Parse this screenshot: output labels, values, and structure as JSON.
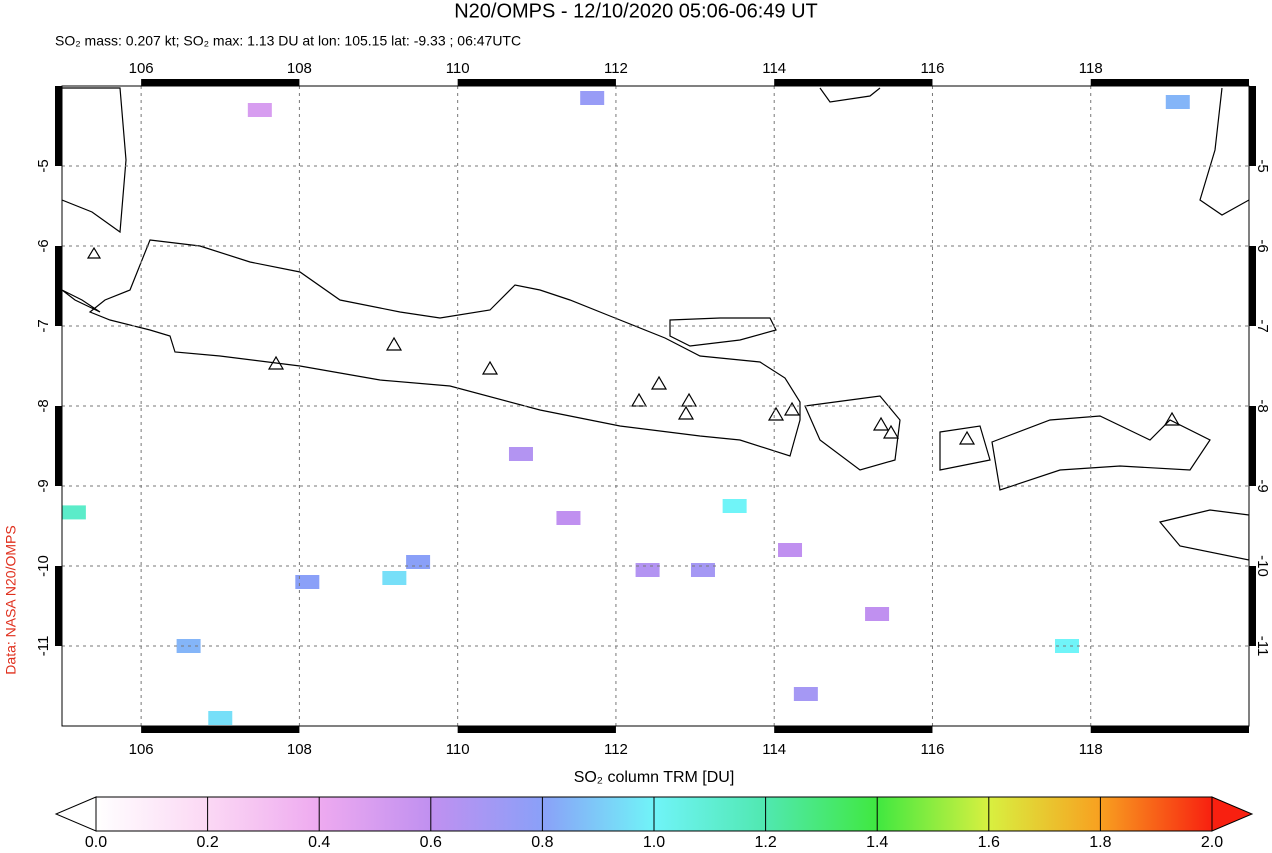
{
  "chart_data": {
    "type": "map",
    "title": "N20/OMPS - 12/10/2020 05:06-06:49 UT",
    "subtitle": "SO₂ mass: 0.207 kt; SO₂ max: 1.13 DU at lon: 105.15 lat: -9.33 ; 06:47UTC",
    "credit": "Data: NASA N20/OMPS",
    "xlim": [
      105,
      120
    ],
    "ylim": [
      -12,
      -4
    ],
    "xticks": [
      106,
      108,
      110,
      112,
      114,
      116,
      118
    ],
    "yticks": [
      -5,
      -6,
      -7,
      -8,
      -9,
      -10,
      -11
    ],
    "grid": true,
    "pixels": {
      "lon": [
        105.15,
        111.7,
        113.5,
        109.2,
        107.0,
        117.7,
        112.4,
        114.4,
        119.1,
        110.8,
        109.5,
        113.1,
        108.1,
        106.6,
        115.3,
        114.2,
        111.4,
        107.5
      ],
      "lat": [
        -9.33,
        -4.15,
        -9.25,
        -10.15,
        -11.9,
        -11.0,
        -10.05,
        -11.6,
        -4.2,
        -8.6,
        -9.95,
        -10.05,
        -10.2,
        -11.0,
        -10.6,
        -9.8,
        -9.4,
        -4.3
      ],
      "values": [
        1.13,
        0.75,
        1.0,
        0.95,
        0.95,
        1.0,
        0.65,
        0.7,
        0.85,
        0.65,
        0.8,
        0.7,
        0.8,
        0.85,
        0.6,
        0.6,
        0.6,
        0.5
      ]
    },
    "colorbar": {
      "label": "SO₂ column TRM [DU]",
      "lim": [
        0,
        2
      ],
      "ticks": [
        {
          "value": 0,
          "label": "0.0"
        },
        {
          "value": 0.2,
          "label": "0.2"
        },
        {
          "value": 0.4,
          "label": "0.4"
        },
        {
          "value": 0.6,
          "label": "0.6"
        },
        {
          "value": 0.8,
          "label": "0.8"
        },
        {
          "value": 1.0,
          "label": "1.0"
        },
        {
          "value": 1.2,
          "label": "1.2"
        },
        {
          "value": 1.4,
          "label": "1.4"
        },
        {
          "value": 1.6,
          "label": "1.6"
        },
        {
          "value": 1.8,
          "label": "1.8"
        },
        {
          "value": 2.0,
          "label": "2.0"
        }
      ]
    }
  }
}
